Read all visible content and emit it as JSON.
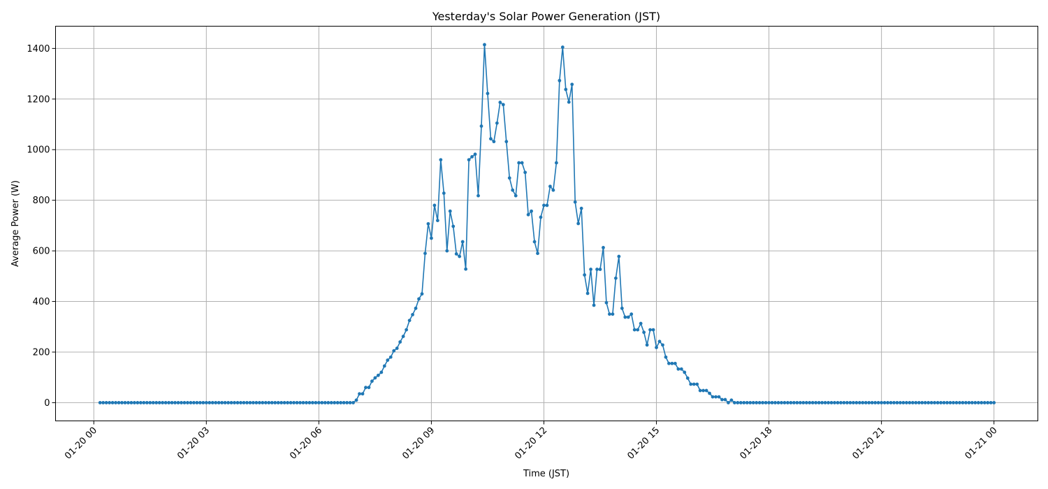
{
  "chart_data": {
    "type": "line",
    "title": "Yesterday's Solar Power Generation (JST)",
    "xlabel": "Time (JST)",
    "ylabel": "Average Power (W)",
    "x_start": "01-20 00:10",
    "x_end": "01-21 00:00",
    "x_interval_minutes": 5,
    "xlim_hours": [
      -1.02,
      25.17
    ],
    "ylim": [
      -72,
      1488
    ],
    "grid": true,
    "marker": "circle",
    "color": "#1f77b4",
    "xticks": [
      {
        "hour": 0,
        "label": "01-20 00"
      },
      {
        "hour": 3,
        "label": "01-20 03"
      },
      {
        "hour": 6,
        "label": "01-20 06"
      },
      {
        "hour": 9,
        "label": "01-20 09"
      },
      {
        "hour": 12,
        "label": "01-20 12"
      },
      {
        "hour": 15,
        "label": "01-20 15"
      },
      {
        "hour": 18,
        "label": "01-20 18"
      },
      {
        "hour": 21,
        "label": "01-20 21"
      },
      {
        "hour": 24,
        "label": "01-21 00"
      }
    ],
    "yticks": [
      {
        "value": 0,
        "label": "0"
      },
      {
        "value": 200,
        "label": "200"
      },
      {
        "value": 400,
        "label": "400"
      },
      {
        "value": 600,
        "label": "600"
      },
      {
        "value": 800,
        "label": "800"
      },
      {
        "value": 1000,
        "label": "1000"
      },
      {
        "value": 1200,
        "label": "1200"
      },
      {
        "value": 1400,
        "label": "1400"
      }
    ],
    "values": [
      0,
      0,
      0,
      0,
      0,
      0,
      0,
      0,
      0,
      0,
      0,
      0,
      0,
      0,
      0,
      0,
      0,
      0,
      0,
      0,
      0,
      0,
      0,
      0,
      0,
      0,
      0,
      0,
      0,
      0,
      0,
      0,
      0,
      0,
      0,
      0,
      0,
      0,
      0,
      0,
      0,
      0,
      0,
      0,
      0,
      0,
      0,
      0,
      0,
      0,
      0,
      0,
      0,
      0,
      0,
      0,
      0,
      0,
      0,
      0,
      0,
      0,
      0,
      0,
      0,
      0,
      0,
      0,
      0,
      0,
      0,
      0,
      0,
      0,
      0,
      0,
      0,
      0,
      0,
      0,
      0,
      0,
      10,
      35,
      35,
      60,
      60,
      85,
      98,
      108,
      120,
      145,
      168,
      180,
      205,
      215,
      240,
      262,
      288,
      325,
      348,
      373,
      410,
      430,
      590,
      707,
      650,
      780,
      720,
      960,
      828,
      600,
      757,
      697,
      588,
      578,
      636,
      528,
      960,
      972,
      982,
      818,
      1093,
      1415,
      1222,
      1043,
      1032,
      1105,
      1187,
      1178,
      1032,
      888,
      840,
      818,
      948,
      948,
      910,
      743,
      757,
      636,
      590,
      733,
      780,
      780,
      855,
      840,
      948,
      1273,
      1405,
      1238,
      1188,
      1258,
      793,
      708,
      768,
      505,
      432,
      527,
      385,
      527,
      527,
      613,
      395,
      350,
      350,
      492,
      578,
      373,
      338,
      338,
      350,
      288,
      288,
      313,
      278,
      228,
      288,
      288,
      218,
      242,
      228,
      180,
      155,
      155,
      155,
      133,
      133,
      120,
      97,
      73,
      73,
      73,
      48,
      48,
      48,
      37,
      23,
      23,
      23,
      12,
      12,
      0,
      10,
      0,
      0,
      0,
      0,
      0,
      0,
      0,
      0,
      0,
      0,
      0,
      0,
      0,
      0,
      0,
      0,
      0,
      0,
      0,
      0,
      0,
      0,
      0,
      0,
      0,
      0,
      0,
      0,
      0,
      0,
      0,
      0,
      0,
      0,
      0,
      0,
      0,
      0,
      0,
      0,
      0,
      0,
      0,
      0,
      0,
      0,
      0,
      0,
      0,
      0,
      0,
      0,
      0,
      0,
      0,
      0,
      0,
      0,
      0,
      0,
      0,
      0,
      0,
      0,
      0,
      0,
      0,
      0,
      0,
      0,
      0,
      0,
      0,
      0,
      0,
      0,
      0,
      0,
      0,
      0,
      0,
      0,
      0,
      0
    ]
  }
}
